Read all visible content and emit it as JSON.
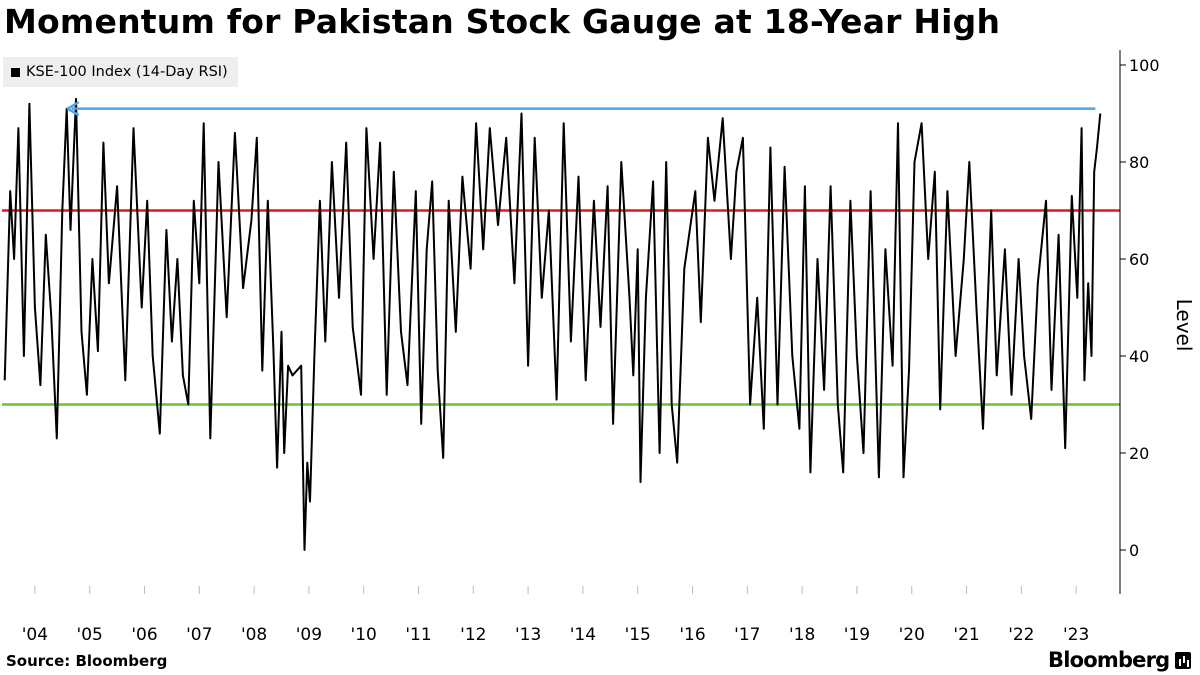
{
  "header": {
    "title": "Momentum for Pakistan Stock Gauge at 18-Year High"
  },
  "footer": {
    "source": "Source: Bloomberg",
    "brand": "Bloomberg",
    "brand_icon": "bloomberg-terminal-icon"
  },
  "colors": {
    "series": "#000000",
    "overbought": "#e8151b",
    "oversold": "#6dc22e",
    "arrow": "#4da3ee",
    "axis": "#000000",
    "tick_grid": "#bbbbbb"
  },
  "chart_data": {
    "type": "line",
    "legend": {
      "label": "KSE-100 Index (14-Day RSI)",
      "placement": "top-left"
    },
    "ylabel": "Level",
    "ylim": [
      -8,
      100
    ],
    "yticks": [
      0,
      20,
      40,
      60,
      80,
      100
    ],
    "ytick_labels": [
      "0",
      "20",
      "40",
      "60",
      "80",
      "100"
    ],
    "y_axis_side": "right",
    "xlim": [
      2003.4,
      2023.8
    ],
    "xtick_positions": [
      2004,
      2005,
      2006,
      2007,
      2008,
      2009,
      2010,
      2011,
      2012,
      2013,
      2014,
      2015,
      2016,
      2017,
      2018,
      2019,
      2020,
      2021,
      2022,
      2023
    ],
    "xtick_labels": [
      "'04",
      "'05",
      "'06",
      "'07",
      "'08",
      "'09",
      "'10",
      "'11",
      "'12",
      "'13",
      "'14",
      "'15",
      "'16",
      "'17",
      "'18",
      "'19",
      "'20",
      "'21",
      "'22",
      "'23"
    ],
    "reference_lines": [
      {
        "value": 70,
        "color": "#e8151b"
      },
      {
        "value": 30,
        "color": "#6dc22e"
      }
    ],
    "annotation_arrow": {
      "x_start": 2023.35,
      "x_end": 2004.6,
      "y": 91,
      "color": "#4da3ee"
    },
    "series": [
      {
        "name": "KSE-100 Index (14-Day RSI)",
        "points": [
          [
            2003.45,
            35
          ],
          [
            2003.55,
            74
          ],
          [
            2003.62,
            60
          ],
          [
            2003.7,
            87
          ],
          [
            2003.8,
            40
          ],
          [
            2003.9,
            92
          ],
          [
            2004.0,
            50
          ],
          [
            2004.1,
            34
          ],
          [
            2004.2,
            65
          ],
          [
            2004.3,
            48
          ],
          [
            2004.4,
            23
          ],
          [
            2004.5,
            70
          ],
          [
            2004.58,
            91
          ],
          [
            2004.65,
            66
          ],
          [
            2004.75,
            93
          ],
          [
            2004.85,
            45
          ],
          [
            2004.95,
            32
          ],
          [
            2005.05,
            60
          ],
          [
            2005.15,
            41
          ],
          [
            2005.25,
            84
          ],
          [
            2005.35,
            55
          ],
          [
            2005.5,
            75
          ],
          [
            2005.65,
            35
          ],
          [
            2005.8,
            87
          ],
          [
            2005.95,
            50
          ],
          [
            2006.05,
            72
          ],
          [
            2006.15,
            40
          ],
          [
            2006.28,
            24
          ],
          [
            2006.4,
            66
          ],
          [
            2006.5,
            43
          ],
          [
            2006.6,
            60
          ],
          [
            2006.7,
            36
          ],
          [
            2006.8,
            30
          ],
          [
            2006.9,
            72
          ],
          [
            2007.0,
            55
          ],
          [
            2007.08,
            88
          ],
          [
            2007.2,
            23
          ],
          [
            2007.35,
            80
          ],
          [
            2007.5,
            48
          ],
          [
            2007.65,
            86
          ],
          [
            2007.8,
            54
          ],
          [
            2007.95,
            68
          ],
          [
            2008.05,
            85
          ],
          [
            2008.15,
            37
          ],
          [
            2008.25,
            72
          ],
          [
            2008.35,
            42
          ],
          [
            2008.42,
            17
          ],
          [
            2008.5,
            45
          ],
          [
            2008.55,
            20
          ],
          [
            2008.62,
            38
          ],
          [
            2008.7,
            36
          ],
          [
            2008.78,
            37
          ],
          [
            2008.86,
            38
          ],
          [
            2008.92,
            0
          ],
          [
            2008.97,
            18
          ],
          [
            2009.02,
            10
          ],
          [
            2009.1,
            40
          ],
          [
            2009.2,
            72
          ],
          [
            2009.3,
            43
          ],
          [
            2009.42,
            80
          ],
          [
            2009.55,
            52
          ],
          [
            2009.68,
            84
          ],
          [
            2009.8,
            46
          ],
          [
            2009.95,
            32
          ],
          [
            2010.05,
            87
          ],
          [
            2010.18,
            60
          ],
          [
            2010.3,
            84
          ],
          [
            2010.42,
            32
          ],
          [
            2010.55,
            78
          ],
          [
            2010.68,
            45
          ],
          [
            2010.8,
            34
          ],
          [
            2010.95,
            74
          ],
          [
            2011.05,
            26
          ],
          [
            2011.15,
            62
          ],
          [
            2011.25,
            76
          ],
          [
            2011.35,
            37
          ],
          [
            2011.45,
            19
          ],
          [
            2011.55,
            72
          ],
          [
            2011.68,
            45
          ],
          [
            2011.8,
            77
          ],
          [
            2011.95,
            58
          ],
          [
            2012.05,
            88
          ],
          [
            2012.18,
            62
          ],
          [
            2012.3,
            87
          ],
          [
            2012.45,
            67
          ],
          [
            2012.6,
            85
          ],
          [
            2012.75,
            55
          ],
          [
            2012.88,
            90
          ],
          [
            2013.0,
            38
          ],
          [
            2013.12,
            85
          ],
          [
            2013.25,
            52
          ],
          [
            2013.38,
            70
          ],
          [
            2013.52,
            31
          ],
          [
            2013.65,
            88
          ],
          [
            2013.78,
            43
          ],
          [
            2013.92,
            77
          ],
          [
            2014.05,
            35
          ],
          [
            2014.2,
            72
          ],
          [
            2014.32,
            46
          ],
          [
            2014.45,
            75
          ],
          [
            2014.55,
            26
          ],
          [
            2014.7,
            80
          ],
          [
            2014.85,
            52
          ],
          [
            2014.92,
            36
          ],
          [
            2015.0,
            62
          ],
          [
            2015.05,
            14
          ],
          [
            2015.15,
            52
          ],
          [
            2015.28,
            76
          ],
          [
            2015.4,
            20
          ],
          [
            2015.52,
            80
          ],
          [
            2015.62,
            30
          ],
          [
            2015.72,
            18
          ],
          [
            2015.85,
            58
          ],
          [
            2016.05,
            74
          ],
          [
            2016.15,
            47
          ],
          [
            2016.28,
            85
          ],
          [
            2016.4,
            72
          ],
          [
            2016.55,
            89
          ],
          [
            2016.7,
            60
          ],
          [
            2016.8,
            78
          ],
          [
            2016.92,
            85
          ],
          [
            2017.05,
            30
          ],
          [
            2017.18,
            52
          ],
          [
            2017.3,
            25
          ],
          [
            2017.42,
            83
          ],
          [
            2017.55,
            30
          ],
          [
            2017.68,
            79
          ],
          [
            2017.82,
            40
          ],
          [
            2017.95,
            25
          ],
          [
            2018.05,
            75
          ],
          [
            2018.15,
            16
          ],
          [
            2018.28,
            60
          ],
          [
            2018.4,
            33
          ],
          [
            2018.52,
            75
          ],
          [
            2018.65,
            30
          ],
          [
            2018.75,
            16
          ],
          [
            2018.88,
            72
          ],
          [
            2019.0,
            40
          ],
          [
            2019.12,
            20
          ],
          [
            2019.25,
            74
          ],
          [
            2019.4,
            15
          ],
          [
            2019.52,
            62
          ],
          [
            2019.65,
            38
          ],
          [
            2019.75,
            88
          ],
          [
            2019.85,
            15
          ],
          [
            2019.95,
            37
          ],
          [
            2020.05,
            80
          ],
          [
            2020.18,
            88
          ],
          [
            2020.3,
            60
          ],
          [
            2020.42,
            78
          ],
          [
            2020.52,
            29
          ],
          [
            2020.65,
            74
          ],
          [
            2020.8,
            40
          ],
          [
            2020.95,
            60
          ],
          [
            2021.05,
            80
          ],
          [
            2021.18,
            50
          ],
          [
            2021.3,
            25
          ],
          [
            2021.45,
            70
          ],
          [
            2021.55,
            36
          ],
          [
            2021.7,
            62
          ],
          [
            2021.82,
            32
          ],
          [
            2021.95,
            60
          ],
          [
            2022.05,
            40
          ],
          [
            2022.18,
            27
          ],
          [
            2022.3,
            55
          ],
          [
            2022.45,
            72
          ],
          [
            2022.55,
            33
          ],
          [
            2022.68,
            65
          ],
          [
            2022.8,
            21
          ],
          [
            2022.92,
            73
          ],
          [
            2023.02,
            52
          ],
          [
            2023.1,
            87
          ],
          [
            2023.15,
            35
          ],
          [
            2023.22,
            55
          ],
          [
            2023.28,
            40
          ],
          [
            2023.33,
            78
          ],
          [
            2023.38,
            83
          ],
          [
            2023.44,
            90
          ]
        ]
      }
    ]
  }
}
